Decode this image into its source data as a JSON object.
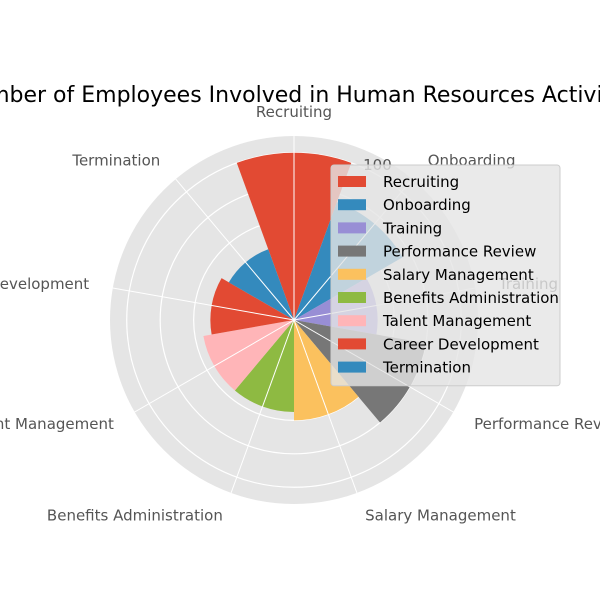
{
  "chart_data": {
    "type": "polar-bar",
    "title": "Number of Employees Involved in Human Resources Activities",
    "categories": [
      "Recruiting",
      "Onboarding",
      "Training",
      "Performance Review",
      "Salary Management",
      "Benefits Administration",
      "Talent Management",
      "Career Development",
      "Termination"
    ],
    "values": [
      100,
      75,
      50,
      80,
      60,
      55,
      55,
      50,
      45
    ],
    "rlim": [
      0,
      110
    ],
    "rticks": [
      100
    ],
    "grid": true,
    "legend": {
      "placement": "right",
      "entries": [
        "Recruiting",
        "Onboarding",
        "Training",
        "Performance Review",
        "Salary Management",
        "Benefits Administration",
        "Talent Management",
        "Career Development",
        "Termination"
      ]
    },
    "colors": [
      "#E24A33",
      "#348ABD",
      "#988ED5",
      "#777777",
      "#FBC15E",
      "#8EBA42",
      "#FFB5B8",
      "#E24A33",
      "#348ABD"
    ],
    "background": "#E5E5E5",
    "grid_color": "#FFFFFF"
  }
}
